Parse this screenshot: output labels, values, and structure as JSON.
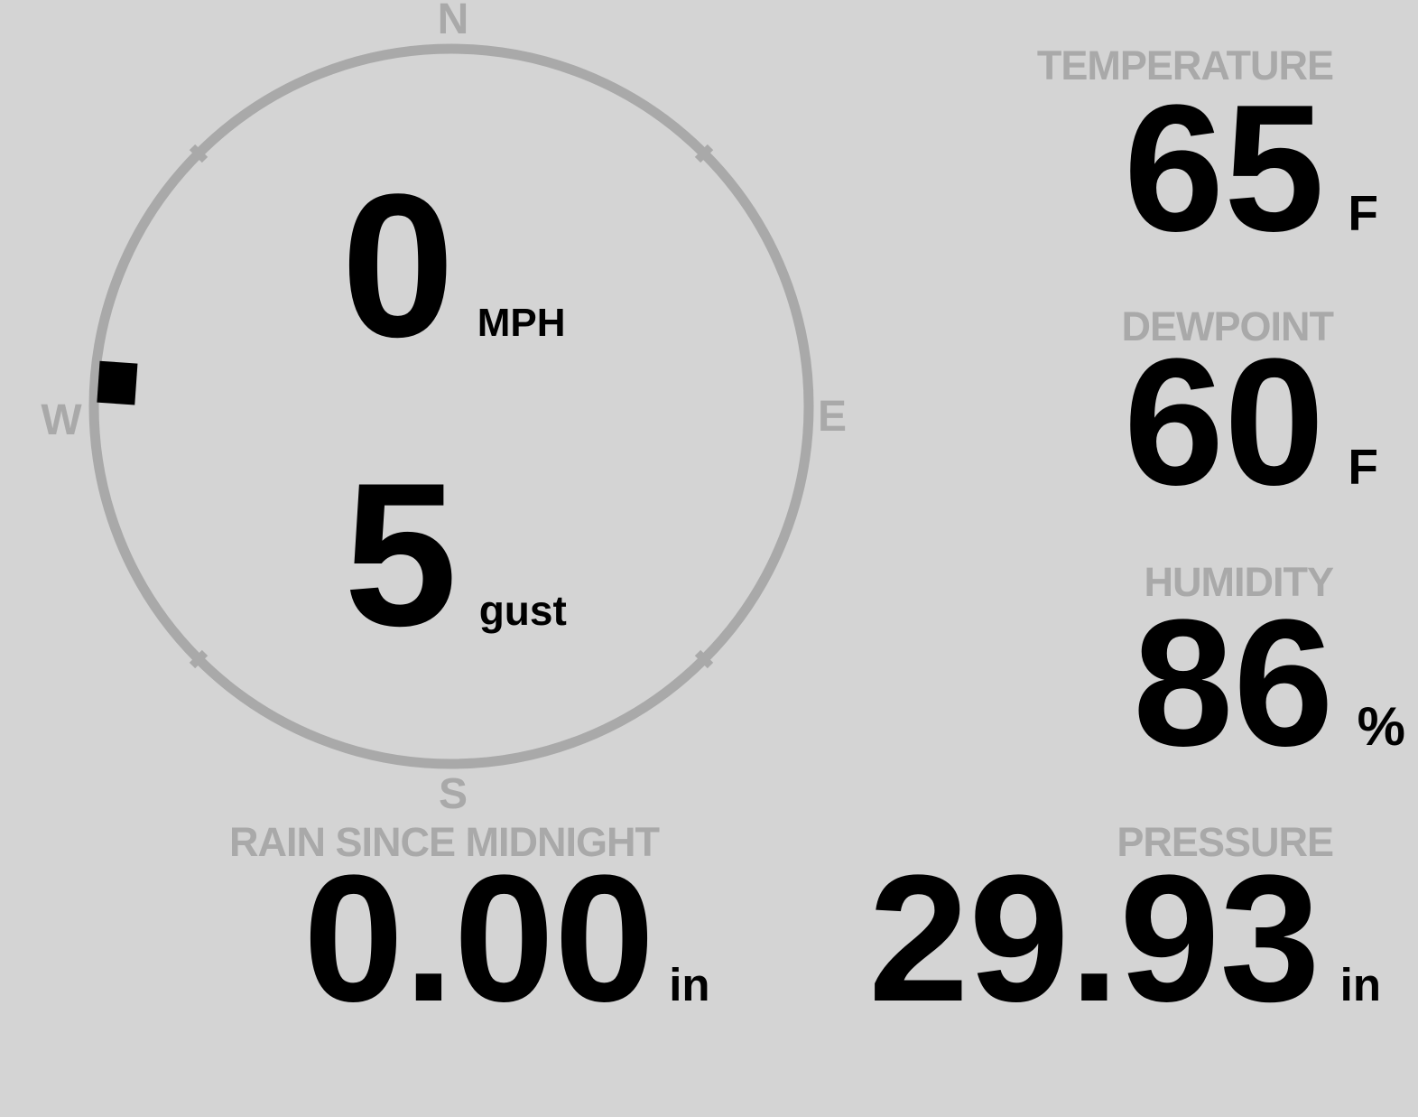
{
  "theme": {
    "background_color": "#d4d4d4",
    "muted_color": "#a9a9a9",
    "value_color": "#000000"
  },
  "wind": {
    "speed": "0",
    "speed_unit": "MPH",
    "gust": "5",
    "gust_unit": "gust",
    "direction_degrees": 274,
    "compass": {
      "north": "N",
      "east": "E",
      "south": "S",
      "west": "W"
    }
  },
  "metrics": {
    "temperature": {
      "label": "TEMPERATURE",
      "value": "65",
      "unit": "F"
    },
    "dewpoint": {
      "label": "DEWPOINT",
      "value": "60",
      "unit": "F"
    },
    "humidity": {
      "label": "HUMIDITY",
      "value": "86",
      "unit": "%"
    },
    "rain": {
      "label": "RAIN SINCE MIDNIGHT",
      "value": "0.00",
      "unit": "in"
    },
    "pressure": {
      "label": "PRESSURE",
      "value": "29.93",
      "unit": "in"
    }
  }
}
